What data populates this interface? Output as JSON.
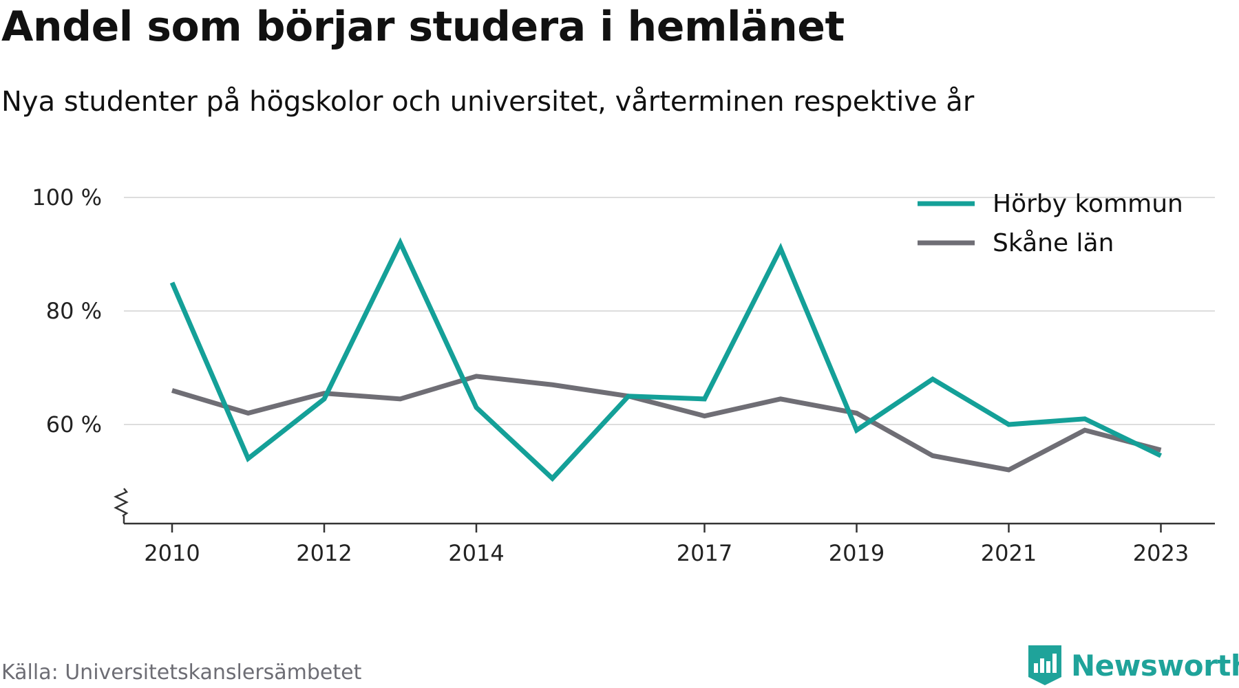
{
  "header": {
    "title": "Andel som börjar studera i hemlänet",
    "subtitle": "Nya studenter på högskolor och universitet, vårterminen respektive år"
  },
  "footer": {
    "source": "Källa: Universitetskanslersämbetet",
    "brand": "Newsworthy"
  },
  "colors": {
    "horby": "#14a098",
    "skane": "#6f6e75",
    "grid": "#dddddd",
    "axis": "#333333",
    "brand": "#1fa39a"
  },
  "chart_data": {
    "type": "line",
    "x": [
      2010,
      2011,
      2012,
      2013,
      2014,
      2015,
      2016,
      2017,
      2018,
      2019,
      2020,
      2021,
      2022,
      2023
    ],
    "x_ticks": [
      "2010",
      "2012",
      "2014",
      "2017",
      "2019",
      "2021",
      "2023"
    ],
    "y_ticks": [
      "60 %",
      "80 %",
      "100 %"
    ],
    "ylim": [
      43,
      100
    ],
    "y_axis_broken": true,
    "grid": "horizontal",
    "legend_position": "top-right",
    "series": [
      {
        "name": "Hörby kommun",
        "color": "#14a098",
        "values": [
          85,
          54,
          64.5,
          92,
          63,
          50.5,
          65,
          64.5,
          91,
          59,
          68,
          60,
          61,
          54.5
        ]
      },
      {
        "name": "Skåne län",
        "color": "#6f6e75",
        "values": [
          66,
          62,
          65.5,
          64.5,
          68.5,
          67,
          65,
          61.5,
          64.5,
          62,
          54.5,
          52,
          59,
          55.5
        ]
      }
    ]
  }
}
